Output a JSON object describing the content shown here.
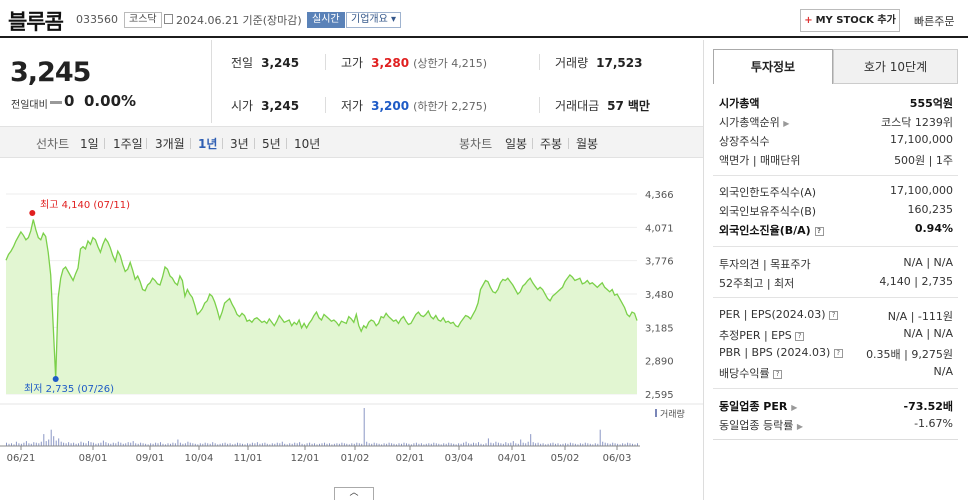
{
  "header": {
    "name": "블루콤",
    "code": "033560",
    "market": "코스닥",
    "date": "2024.06.21 기준(장마감)",
    "live": "실시간",
    "overview": "기업개요",
    "mystock": "MY STOCK 추가",
    "quick_order": "빠른주문"
  },
  "price": {
    "current": "3,245",
    "change_label": "전일대비",
    "change": "0",
    "change_pct": "0.00%"
  },
  "stats": {
    "prev_label": "전일",
    "prev": "3,245",
    "high_label": "고가",
    "high": "3,280",
    "upper_limit": "(상한가 4,215)",
    "volume_label": "거래량",
    "volume": "17,523",
    "open_label": "시가",
    "open": "3,245",
    "low_label": "저가",
    "low": "3,200",
    "lower_limit": "(하한가 2,275)",
    "amount_label": "거래대금",
    "amount": "57",
    "amount_unit": "백만"
  },
  "period": {
    "line_label": "선차트",
    "options": [
      "1일",
      "1주일",
      "3개월",
      "1년",
      "3년",
      "5년",
      "10년"
    ],
    "selected": "1년",
    "candle_label": "봉차트",
    "candle_options": [
      "일봉",
      "주봉",
      "월봉"
    ]
  },
  "tabs": {
    "active": "투자정보",
    "inactive": "호가 10단계"
  },
  "info": {
    "market_cap_label": "시가총액",
    "market_cap": "555억원",
    "cap_rank_label": "시가총액순위",
    "cap_rank": "코스닥 1239위",
    "shares_label": "상장주식수",
    "shares": "17,100,000",
    "par_label": "액면가 | 매매단위",
    "par": "500원 | 1주",
    "foreign_limit_label": "외국인한도주식수(A)",
    "foreign_limit": "17,100,000",
    "foreign_hold_label": "외국인보유주식수(B)",
    "foreign_hold": "160,235",
    "foreign_ratio_label": "외국인소진율(B/A)",
    "foreign_ratio": "0.94%",
    "opinion_label": "투자의견 | 목표주가",
    "opinion": "N/A | N/A",
    "week52_label": "52주최고 | 최저",
    "week52": "4,140 | 2,735",
    "per_label": "PER | EPS(2024.03)",
    "per": "N/A | -111원",
    "est_per_label": "추정PER | EPS",
    "est_per": "N/A | N/A",
    "pbr_label": "PBR | BPS (2024.03)",
    "pbr": "0.35배 | 9,275원",
    "div_label": "배당수익률",
    "div": "N/A",
    "ind_per_label": "동일업종 PER",
    "ind_per": "-73.52배",
    "ind_rate_label": "동일업종 등락률",
    "ind_rate": "-1.67%"
  },
  "chart_data": {
    "type": "line",
    "y_ticks": [
      4366,
      4071,
      3776,
      3480,
      3185,
      2890,
      2595
    ],
    "ylim": [
      2595,
      4366
    ],
    "x_tick_labels": [
      "06/21",
      "08/01",
      "09/01",
      "10/04",
      "11/01",
      "12/01",
      "01/02",
      "02/01",
      "03/04",
      "04/01",
      "05/02",
      "06/03"
    ],
    "high_annotation": "최고 4,140 (07/11)",
    "low_annotation": "최저 2,735 (07/26)",
    "volume_label": "거래량",
    "colors": {
      "line": "#7bd04a",
      "fill": "#e2f6d2",
      "high": "#e01f1f",
      "low": "#1e5bc6"
    },
    "values": [
      3780,
      3830,
      3860,
      3900,
      3950,
      3990,
      4030,
      4000,
      3960,
      3980,
      4040,
      4140,
      4050,
      3980,
      3960,
      4020,
      3990,
      3850,
      3650,
      3200,
      2735,
      3450,
      3620,
      3700,
      3720,
      3680,
      3640,
      3600,
      3660,
      3710,
      3880,
      3900,
      3880,
      3950,
      3920,
      3980,
      3960,
      3900,
      3850,
      3920,
      3970,
      3940,
      3890,
      3820,
      3770,
      3860,
      3820,
      3740,
      3680,
      3700,
      3760,
      3690,
      3610,
      3640,
      3590,
      3520,
      3510,
      3560,
      3580,
      3620,
      3600,
      3570,
      3560,
      3630,
      3720,
      3700,
      3640,
      3620,
      3580,
      3560,
      3640,
      3600,
      3460,
      3520,
      3480,
      3450,
      3380,
      3300,
      3320,
      3350,
      3400,
      3420,
      3480,
      3460,
      3410,
      3340,
      3260,
      3320,
      3400,
      3420,
      3440,
      3390,
      3350,
      3300,
      3280,
      3310,
      3290,
      3240,
      3250,
      3230,
      3260,
      3270,
      3250,
      3230,
      3240,
      3220,
      3260,
      3230,
      3200,
      3240,
      3290,
      3260,
      3230,
      3240,
      3250,
      3200,
      3230,
      3210,
      3250,
      3180,
      3220,
      3180,
      3220,
      3250,
      3290,
      3320,
      3270,
      3250,
      3300,
      3280,
      3260,
      3240,
      3250,
      3230,
      3200,
      3240,
      3230,
      3220,
      3280,
      3260,
      3230,
      3300,
      3200,
      3150,
      3200,
      3180,
      3230,
      3250,
      3240,
      3200,
      3220,
      3280,
      3270,
      3310,
      3280,
      3260,
      3240,
      3250,
      3220,
      3260,
      3280,
      3240,
      3210,
      3220,
      3260,
      3300,
      3320,
      3290,
      3280,
      3300,
      3330,
      3280,
      3260,
      3290,
      3250,
      3240,
      3270,
      3230,
      3240,
      3220,
      3230,
      3200,
      3190,
      3230,
      3260,
      3290,
      3280,
      3260,
      3300,
      3340,
      3400,
      3520,
      3560,
      3600,
      3590,
      3540,
      3500,
      3490,
      3520,
      3580,
      3610,
      3600,
      3620,
      3590,
      3560,
      3520,
      3480,
      3500,
      3550,
      3570,
      3600,
      3620,
      3580,
      3550,
      3520,
      3540,
      3520,
      3480,
      3440,
      3420,
      3460,
      3480,
      3500,
      3520,
      3540,
      3590,
      3620,
      3650,
      3630,
      3600,
      3610,
      3620,
      3570,
      3580,
      3600,
      3570,
      3580,
      3560,
      3540,
      3560,
      3580,
      3540,
      3520,
      3500,
      3520,
      3470,
      3480,
      3440,
      3400,
      3360,
      3300,
      3280,
      3320,
      3310,
      3245
    ],
    "volume": [
      6,
      4,
      5,
      3,
      8,
      5,
      4,
      6,
      9,
      5,
      4,
      7,
      6,
      5,
      8,
      22,
      9,
      12,
      30,
      18,
      10,
      14,
      8,
      6,
      5,
      7,
      5,
      6,
      4,
      5,
      8,
      6,
      5,
      9,
      7,
      6,
      4,
      5,
      6,
      10,
      7,
      5,
      4,
      6,
      5,
      8,
      6,
      4,
      5,
      7,
      6,
      9,
      5,
      4,
      6,
      5,
      4,
      3,
      5,
      4,
      6,
      5,
      7,
      4,
      3,
      5,
      4,
      6,
      5,
      12,
      6,
      4,
      5,
      8,
      6,
      5,
      4,
      3,
      5,
      4,
      6,
      5,
      4,
      7,
      5,
      3,
      4,
      5,
      6,
      4,
      5,
      3,
      4,
      6,
      5,
      4,
      3,
      5,
      4,
      6,
      5,
      7,
      4,
      5,
      6,
      4,
      3,
      5,
      4,
      6,
      5,
      8,
      4,
      3,
      5,
      4,
      6,
      5,
      7,
      4,
      3,
      5,
      6,
      4,
      5,
      3,
      4,
      5,
      6,
      4,
      5,
      3,
      4,
      5,
      4,
      6,
      5,
      4,
      3,
      5,
      4,
      6,
      5,
      4,
      70,
      8,
      5,
      4,
      6,
      5,
      4,
      3,
      5,
      4,
      6,
      5,
      4,
      3,
      5,
      4,
      6,
      5,
      4,
      3,
      5,
      6,
      4,
      5,
      3,
      4,
      5,
      4,
      6,
      5,
      4,
      3,
      5,
      4,
      6,
      5,
      4,
      3,
      5,
      4,
      6,
      8,
      5,
      4,
      6,
      5,
      7,
      4,
      3,
      5,
      14,
      6,
      5,
      8,
      6,
      5,
      4,
      7,
      5,
      6,
      9,
      5,
      4,
      12,
      6,
      5,
      8,
      22,
      7,
      5,
      6,
      4,
      5,
      3,
      4,
      5,
      6,
      4,
      5,
      3,
      4,
      5,
      4,
      6,
      5,
      4,
      3,
      5,
      4,
      6,
      5,
      4,
      3,
      5,
      4,
      30,
      8,
      6,
      5,
      4,
      6,
      5,
      4,
      3,
      5,
      4,
      6,
      5,
      4,
      3,
      5
    ]
  }
}
